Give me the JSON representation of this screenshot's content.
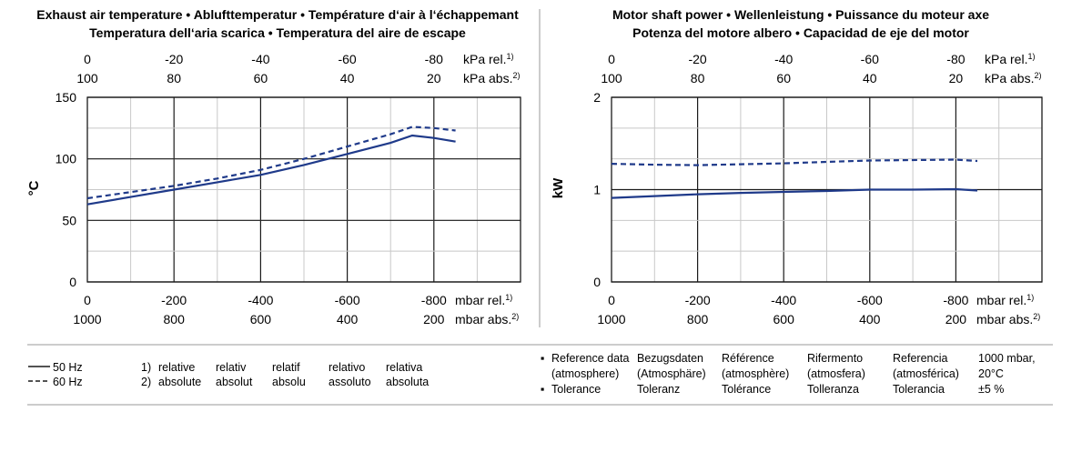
{
  "charts": [
    {
      "title_lines": [
        "Exhaust air temperature  •  Ablufttemperatur  •  Température d‘air à l‘échappemant",
        "Temperatura dell‘aria scarica  •  Temperatura del aire de escape"
      ],
      "ylabel": "°C",
      "y_ticks": [
        "150",
        "100",
        "50",
        "0"
      ],
      "x_bottom_rel": [
        "0",
        "-200",
        "-400",
        "-600",
        "-800"
      ],
      "x_bottom_abs": [
        "1000",
        "800",
        "600",
        "400",
        "200"
      ],
      "x_top_rel": [
        "0",
        "-20",
        "-40",
        "-60",
        "-80"
      ],
      "x_top_abs": [
        "100",
        "80",
        "60",
        "40",
        "20"
      ],
      "unit_bottom_rel": "mbar rel.",
      "unit_bottom_abs": "mbar abs.",
      "unit_top_rel": "kPa rel.",
      "unit_top_abs": "kPa abs.",
      "sup_rel": "1)",
      "sup_abs": "2)"
    },
    {
      "title_lines": [
        "Motor shaft power  •  Wellenleistung  •  Puissance du moteur axe",
        "Potenza del motore albero  •  Capacidad de eje del motor"
      ],
      "ylabel": "kW",
      "y_ticks": [
        "2",
        "1",
        "0"
      ],
      "x_bottom_rel": [
        "0",
        "-200",
        "-400",
        "-600",
        "-800"
      ],
      "x_bottom_abs": [
        "1000",
        "800",
        "600",
        "400",
        "200"
      ],
      "x_top_rel": [
        "0",
        "-20",
        "-40",
        "-60",
        "-80"
      ],
      "x_top_abs": [
        "100",
        "80",
        "60",
        "40",
        "20"
      ],
      "unit_bottom_rel": "mbar rel.",
      "unit_bottom_abs": "mbar abs.",
      "unit_top_rel": "kPa rel.",
      "unit_top_abs": "kPa abs.",
      "sup_rel": "1)",
      "sup_abs": "2)"
    }
  ],
  "chart_data": [
    {
      "type": "line",
      "xlabel": "mbar rel.",
      "ylabel": "°C",
      "xlim": [
        0,
        -1000
      ],
      "ylim": [
        0,
        150
      ],
      "grid": true,
      "series": [
        {
          "name": "50 Hz",
          "style": "solid",
          "color": "#1f3a8a",
          "x": [
            0,
            -100,
            -200,
            -300,
            -400,
            -500,
            -600,
            -700,
            -750,
            -800,
            -850
          ],
          "y": [
            63,
            69,
            75,
            81,
            87,
            95,
            104,
            113,
            119,
            117,
            114
          ]
        },
        {
          "name": "60 Hz",
          "style": "dashed",
          "color": "#1f3a8a",
          "x": [
            0,
            -100,
            -200,
            -300,
            -400,
            -500,
            -600,
            -700,
            -750,
            -800,
            -850
          ],
          "y": [
            68,
            73,
            78,
            84,
            91,
            100,
            110,
            120,
            126,
            125,
            123
          ]
        }
      ]
    },
    {
      "type": "line",
      "xlabel": "mbar rel.",
      "ylabel": "kW",
      "xlim": [
        0,
        -1000
      ],
      "ylim": [
        0,
        2
      ],
      "grid": true,
      "series": [
        {
          "name": "50 Hz",
          "style": "solid",
          "color": "#1f3a8a",
          "x": [
            0,
            -100,
            -200,
            -300,
            -400,
            -500,
            -600,
            -700,
            -800,
            -850
          ],
          "y": [
            0.91,
            0.93,
            0.95,
            0.965,
            0.975,
            0.985,
            1.0,
            1.0,
            1.005,
            0.99
          ]
        },
        {
          "name": "60 Hz",
          "style": "dashed",
          "color": "#1f3a8a",
          "x": [
            0,
            -100,
            -200,
            -300,
            -400,
            -500,
            -600,
            -700,
            -800,
            -850
          ],
          "y": [
            1.28,
            1.27,
            1.265,
            1.275,
            1.285,
            1.3,
            1.315,
            1.32,
            1.325,
            1.31
          ]
        }
      ]
    }
  ],
  "legend": {
    "items": [
      {
        "label": "50 Hz",
        "style": "solid"
      },
      {
        "label": "60 Hz",
        "style": "dashed"
      }
    ]
  },
  "footnotes": {
    "numbers": [
      "1)",
      "2)"
    ],
    "columns": [
      [
        "relative",
        "absolute"
      ],
      [
        "relativ",
        "absolut"
      ],
      [
        "relatif",
        "absolu"
      ],
      [
        "relativo",
        "assoluto"
      ],
      [
        "relativa",
        "absoluta"
      ]
    ]
  },
  "reference": {
    "bullets": [
      "▪",
      "▪"
    ],
    "columns": [
      [
        "Reference data",
        "(atmosphere)",
        "Tolerance"
      ],
      [
        "Bezugsdaten",
        "(Atmosphäre)",
        "Toleranz"
      ],
      [
        "Référence",
        "(atmosphère)",
        "Tolérance"
      ],
      [
        "Rifermento",
        "(atmosfera)",
        "Tolleranza"
      ],
      [
        "Referencia",
        "(atmosférica)",
        "Tolerancia"
      ],
      [
        "1000 mbar,",
        "20°C",
        "±5 %"
      ]
    ]
  },
  "colors": {
    "line": "#1f3a8a",
    "grid": "#c8c8c8",
    "axis": "#1a1a1a",
    "rule": "#9a9a9a"
  }
}
